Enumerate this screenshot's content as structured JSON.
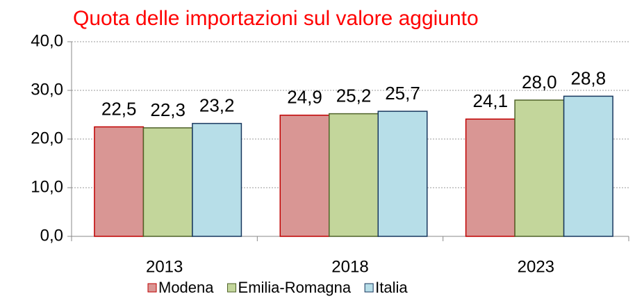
{
  "chart_data": {
    "type": "bar",
    "title": "Quota delle importazioni sul valore aggiunto",
    "categories": [
      "2013",
      "2018",
      "2023"
    ],
    "series": [
      {
        "name": "Modena",
        "color": "#d99694",
        "stroke": "#c00000",
        "values": [
          22.5,
          24.9,
          24.1
        ],
        "value_labels": [
          "22,5",
          "24,9",
          "24,1"
        ]
      },
      {
        "name": "Emilia-Romagna",
        "color": "#c3d69b",
        "stroke": "#4f6228",
        "values": [
          22.3,
          25.2,
          28.0
        ],
        "value_labels": [
          "22,3",
          "25,2",
          "28,0"
        ]
      },
      {
        "name": "Italia",
        "color": "#b7dee8",
        "stroke": "#17375e",
        "values": [
          23.2,
          25.7,
          28.8
        ],
        "value_labels": [
          "23,2",
          "25,7",
          "28,8"
        ]
      }
    ],
    "ylim": [
      0,
      40
    ],
    "yticks": [
      {
        "value": 0,
        "label": "0,0"
      },
      {
        "value": 10,
        "label": "10,0"
      },
      {
        "value": 20,
        "label": "20,0"
      },
      {
        "value": 30,
        "label": "30,0"
      },
      {
        "value": 40,
        "label": "40,0"
      }
    ],
    "grid": true,
    "legend": "bottom"
  }
}
